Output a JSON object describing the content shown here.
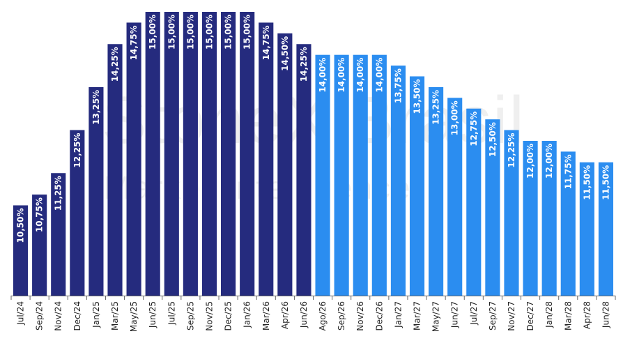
{
  "watermark": {
    "main": "StoneX Brasil",
    "sub": "Market Intelligence"
  },
  "colors": {
    "historical": "#252B7E",
    "forecast": "#2B8DF0",
    "axis": "#666666"
  },
  "chart_data": {
    "type": "bar",
    "title": "",
    "xlabel": "",
    "ylabel": "",
    "ylim": [
      8.4,
      15.0
    ],
    "grid": false,
    "legend": "none",
    "categories": [
      "Jul/24",
      "Sep/24",
      "Nov/24",
      "Dec/24",
      "Jan/25",
      "Mar/25",
      "May/25",
      "Jun/25",
      "Jul/25",
      "Sep/25",
      "Nov/25",
      "Dec/25",
      "Jan/26",
      "Mar/26",
      "Apr/26",
      "Jun/26",
      "Ago/26",
      "Sep/26",
      "Nov/26",
      "Dec/26",
      "Jan/27",
      "Mar/27",
      "May/27",
      "Jun/27",
      "Jul/27",
      "Sep/27",
      "Nov/27",
      "Dec/27",
      "Jan/28",
      "Mar/28",
      "Apr/28",
      "Jun/28"
    ],
    "values": [
      10.5,
      10.75,
      11.25,
      12.25,
      13.25,
      14.25,
      14.75,
      15.0,
      15.0,
      15.0,
      15.0,
      15.0,
      15.0,
      14.75,
      14.5,
      14.25,
      14.0,
      14.0,
      14.0,
      14.0,
      13.75,
      13.5,
      13.25,
      13.0,
      12.75,
      12.5,
      12.25,
      12.0,
      12.0,
      11.75,
      11.5,
      11.5
    ],
    "labels": [
      "10,50%",
      "10,75%",
      "11,25%",
      "12,25%",
      "13,25%",
      "14,25%",
      "14,75%",
      "15,00%",
      "15,00%",
      "15,00%",
      "15,00%",
      "15,00%",
      "15,00%",
      "14,75%",
      "14,50%",
      "14,25%",
      "14,00%",
      "14,00%",
      "14,00%",
      "14,00%",
      "13,75%",
      "13,50%",
      "13,25%",
      "13,00%",
      "12,75%",
      "12,50%",
      "12,25%",
      "12,00%",
      "12,00%",
      "11,75%",
      "11,50%",
      "11,50%"
    ],
    "forecast_from_index": 16
  }
}
